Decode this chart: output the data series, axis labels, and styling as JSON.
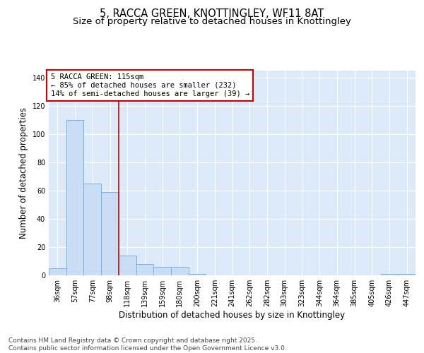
{
  "title_line1": "5, RACCA GREEN, KNOTTINGLEY, WF11 8AT",
  "title_line2": "Size of property relative to detached houses in Knottingley",
  "xlabel": "Distribution of detached houses by size in Knottingley",
  "ylabel": "Number of detached properties",
  "categories": [
    "36sqm",
    "57sqm",
    "77sqm",
    "98sqm",
    "118sqm",
    "139sqm",
    "159sqm",
    "180sqm",
    "200sqm",
    "221sqm",
    "241sqm",
    "262sqm",
    "282sqm",
    "303sqm",
    "323sqm",
    "344sqm",
    "364sqm",
    "385sqm",
    "405sqm",
    "426sqm",
    "447sqm"
  ],
  "values": [
    5,
    110,
    65,
    59,
    14,
    8,
    6,
    6,
    1,
    0,
    0,
    0,
    0,
    0,
    0,
    0,
    0,
    0,
    0,
    1,
    1
  ],
  "bar_color": "#c9ddf5",
  "bar_edge_color": "#7ab0e0",
  "vline_color": "#cc0000",
  "vline_x_index": 4,
  "annotation_text": "5 RACCA GREEN: 115sqm\n← 85% of detached houses are smaller (232)\n14% of semi-detached houses are larger (39) →",
  "annotation_box_edge_color": "#cc0000",
  "annotation_box_face_color": "#ffffff",
  "ylim": [
    0,
    145
  ],
  "yticks": [
    0,
    20,
    40,
    60,
    80,
    100,
    120,
    140
  ],
  "ax_background_color": "#dce9f8",
  "fig_background_color": "#ffffff",
  "footer_text": "Contains HM Land Registry data © Crown copyright and database right 2025.\nContains public sector information licensed under the Open Government Licence v3.0.",
  "grid_color": "#ffffff",
  "title_fontsize": 10.5,
  "subtitle_fontsize": 9.5,
  "tick_fontsize": 7,
  "label_fontsize": 8.5,
  "footer_fontsize": 6.5,
  "ann_fontsize": 7.5
}
